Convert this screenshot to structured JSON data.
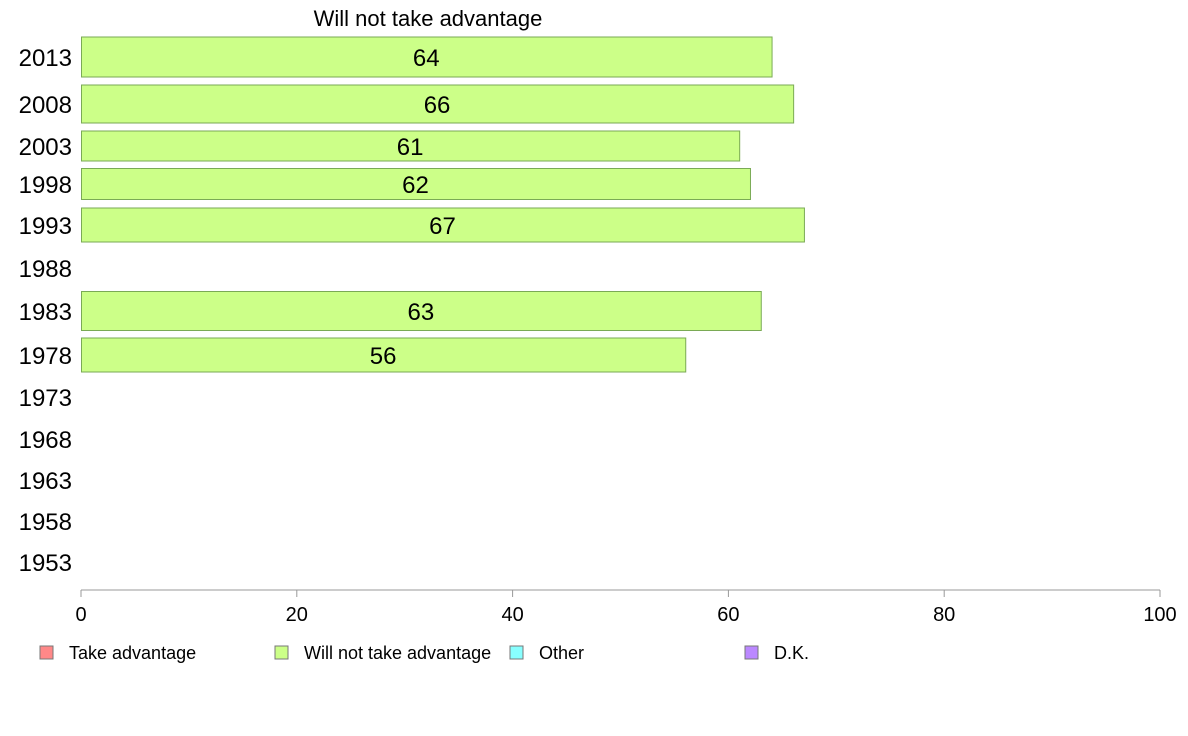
{
  "chart_data": {
    "type": "bar",
    "orientation": "horizontal",
    "title": "Will not take advantage",
    "categories": [
      "2013",
      "2008",
      "2003",
      "1998",
      "1993",
      "1988",
      "1983",
      "1978",
      "1973",
      "1968",
      "1963",
      "1958",
      "1953"
    ],
    "series": [
      {
        "name": "Will not take advantage",
        "color": "#ccff88",
        "values": [
          64,
          66,
          61,
          62,
          67,
          null,
          63,
          56,
          null,
          null,
          null,
          null,
          null
        ]
      }
    ],
    "xlim": [
      0,
      100
    ],
    "xticks": [
      0,
      20,
      40,
      60,
      80,
      100
    ],
    "grid": false,
    "legend_position": "bottom",
    "legend": [
      {
        "label": "Take advantage",
        "color": "#ff8888"
      },
      {
        "label": "Will not take advantage",
        "color": "#ccff88"
      },
      {
        "label": "Other",
        "color": "#88ffff"
      },
      {
        "label": "D.K.",
        "color": "#bb88ff"
      }
    ]
  }
}
